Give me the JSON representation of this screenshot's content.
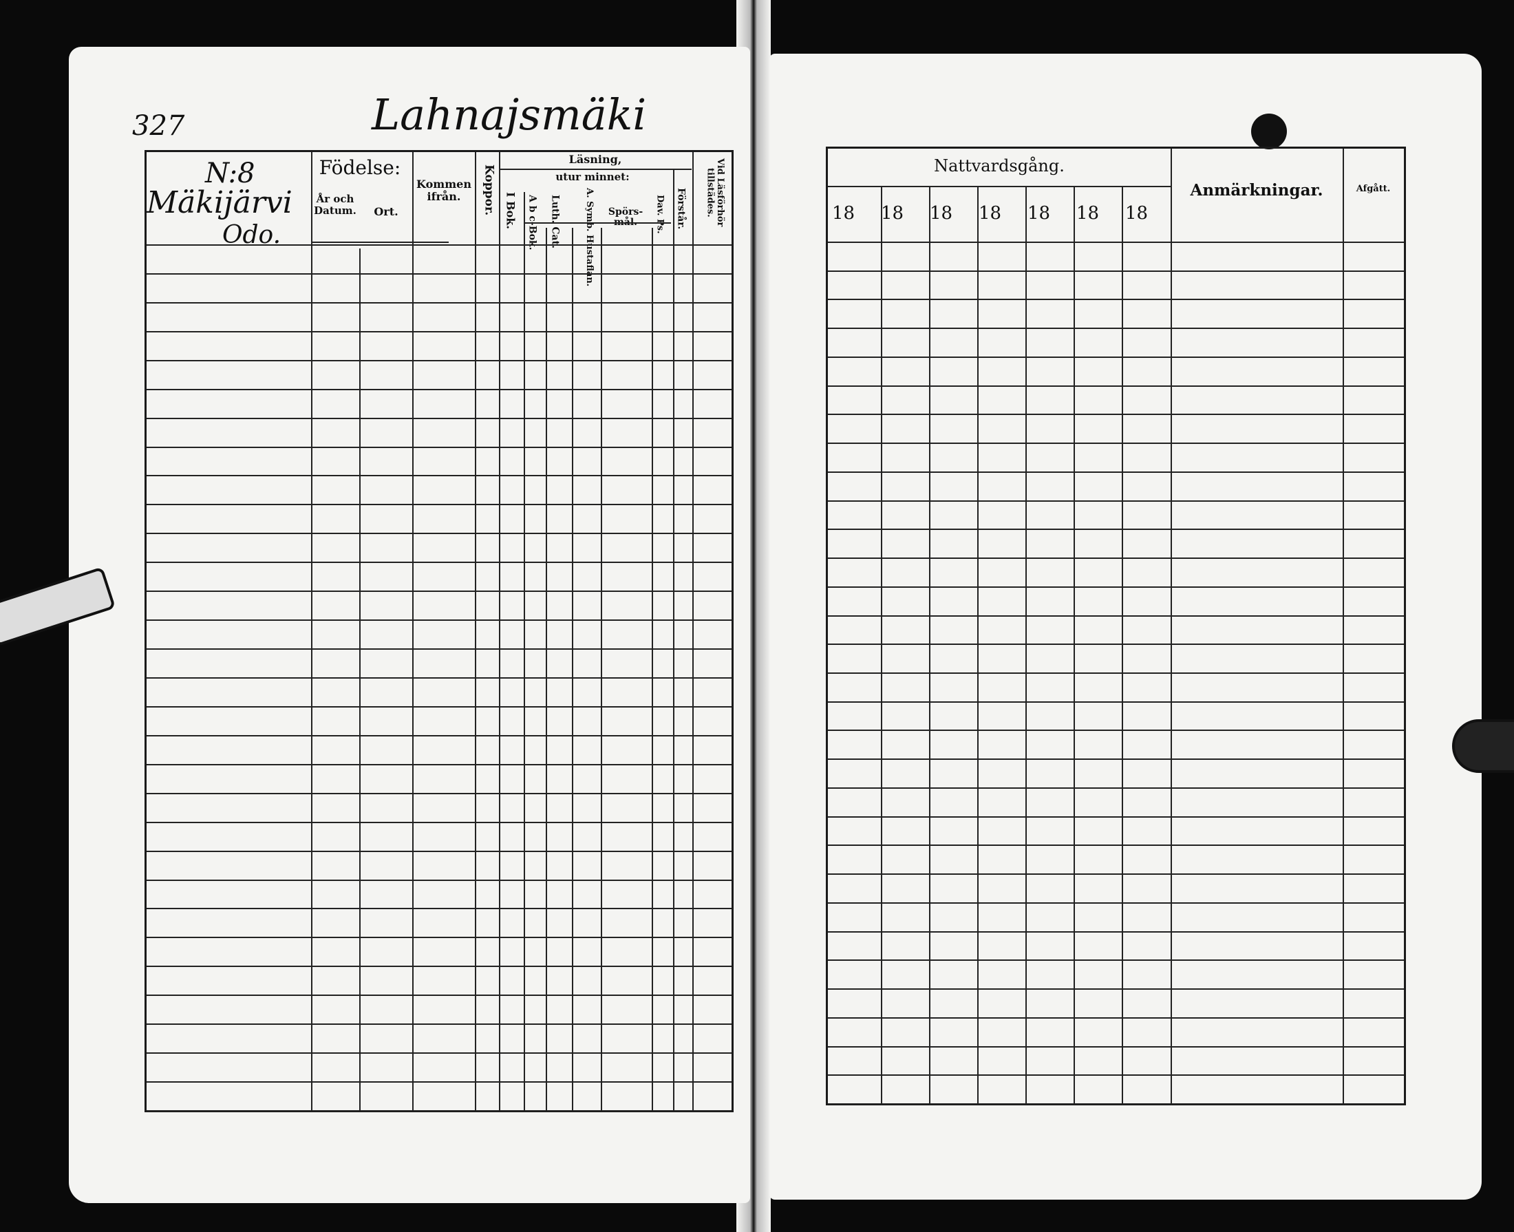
{
  "left_page": {
    "page_number": "327",
    "village_name": "Lahnajsmäki",
    "household_no": "N:8",
    "household_name": "Mäkijärvi",
    "household_sub": "Odo.",
    "headers": {
      "fodelse": "Födelse:",
      "ar_och_datum": "År och Datum.",
      "ort": "Ort.",
      "kommen_ifran": "Kommen ifrån.",
      "koppor": "Koppor.",
      "lasning": "Läsning,",
      "i_bok": "I Bok.",
      "utur_minnet": "utur minnet:",
      "abc_bok": "A b c-Bok.",
      "luth_cat": "Luth. Cat.",
      "symb_hustaflan": "A. Symb. Hustaflan.",
      "sporsmal": "Spörs-mål.",
      "dav_ps": "Dav. Ps.",
      "forstar": "Förstår.",
      "vid_lasforhor": "Vid Läsförhör tillstädes."
    }
  },
  "right_page": {
    "headers": {
      "nattvardsgang": "Nattvardsgång.",
      "year_prefixes": [
        "18",
        "18",
        "18",
        "18",
        "18",
        "18",
        "18"
      ],
      "anmarkningar": "Anmärkningar.",
      "afgatt": "Afgått."
    }
  }
}
